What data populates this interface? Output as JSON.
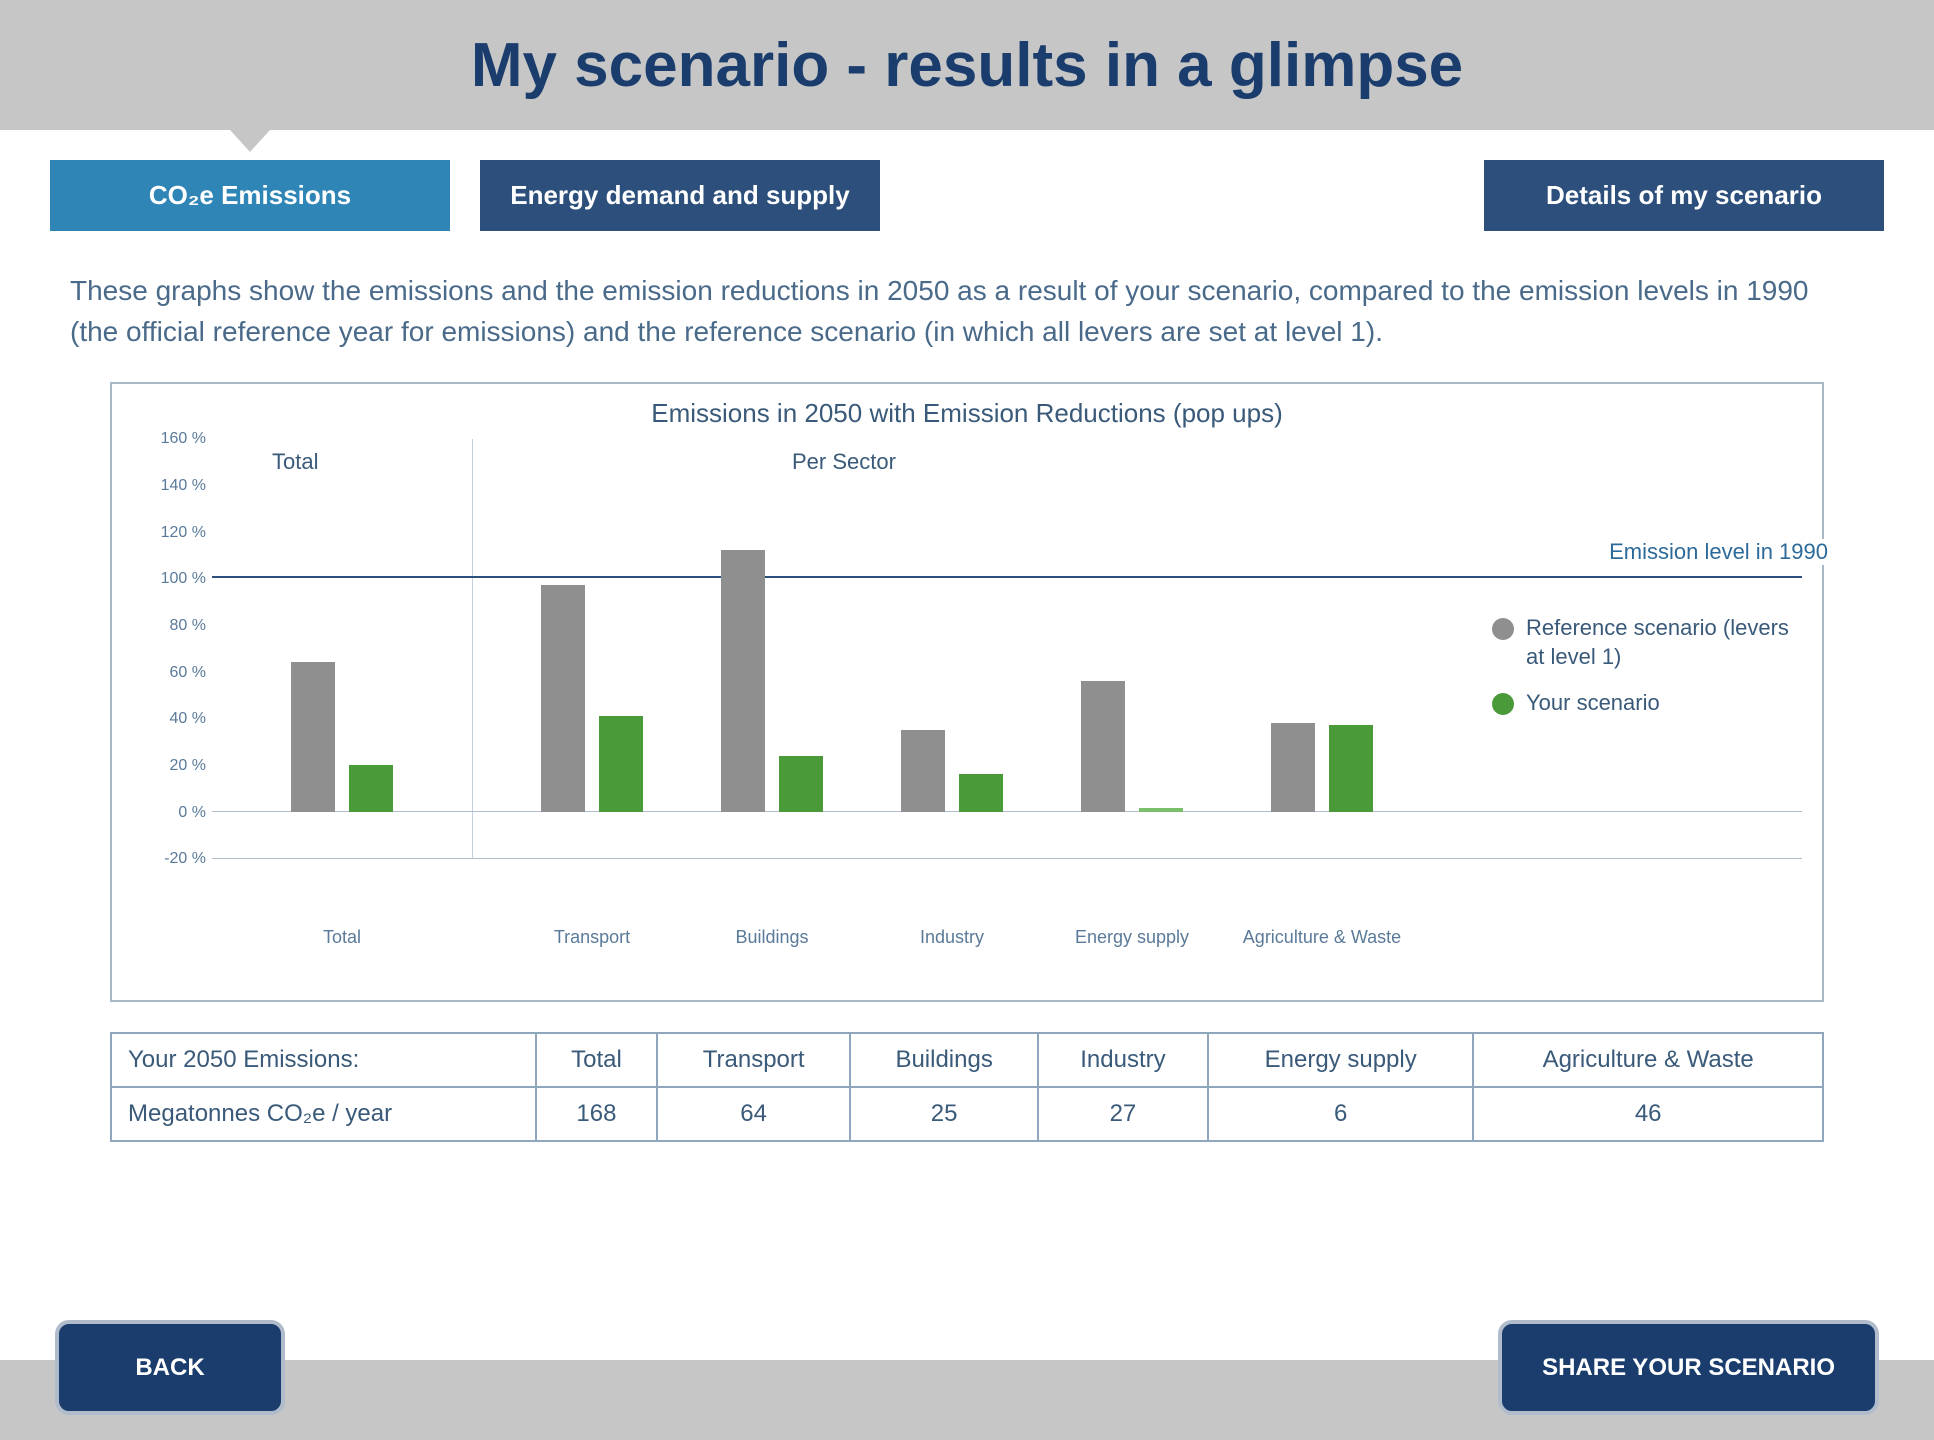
{
  "header": {
    "title": "My scenario - results in a glimpse"
  },
  "tabs": {
    "emissions": "CO₂e Emissions",
    "energy": "Energy demand and supply",
    "details": "Details of my scenario"
  },
  "description": "These graphs show the emissions and the emission reductions in 2050 as a result of your scenario, compared to the emission levels in 1990 (the official reference year for emissions) and the reference scenario (in which all levers are set at level 1).",
  "chart": {
    "type": "bar",
    "title": "Emissions in 2050 with Emission Reductions (pop ups)",
    "section_total_label": "Total",
    "section_sector_label": "Per Sector",
    "ylim": [
      -20,
      160
    ],
    "ytick_step": 20,
    "y_ticks": [
      "-20 %",
      "0 %",
      "20 %",
      "40 %",
      "60 %",
      "80 %",
      "100 %",
      "120 %",
      "140 %",
      "160 %"
    ],
    "reference_line_value": 100,
    "reference_line_label": "Emission level in 1990",
    "categories": [
      "Total",
      "Transport",
      "Buildings",
      "Industry",
      "Energy supply",
      "Agriculture & Waste"
    ],
    "reference_values": [
      64,
      97,
      112,
      35,
      56,
      38
    ],
    "your_values": [
      20,
      41,
      24,
      16,
      1,
      37
    ],
    "bar_ref_color": "#8f8f8f",
    "bar_you_color": "#4a9a3a",
    "legend": {
      "ref": "Reference scenario (levers at level 1)",
      "you": "Your scenario"
    },
    "background_color": "#ffffff",
    "grid_color": "#c6d0dc"
  },
  "table": {
    "header_label": "Your 2050 Emissions:",
    "columns": [
      "Total",
      "Transport",
      "Buildings",
      "Industry",
      "Energy supply",
      "Agriculture & Waste"
    ],
    "row_label": "Megatonnes CO₂e / year",
    "row_values": [
      "168",
      "64",
      "25",
      "27",
      "6",
      "46"
    ]
  },
  "footer": {
    "back": "BACK",
    "share": "SHARE YOUR SCENARIO"
  }
}
